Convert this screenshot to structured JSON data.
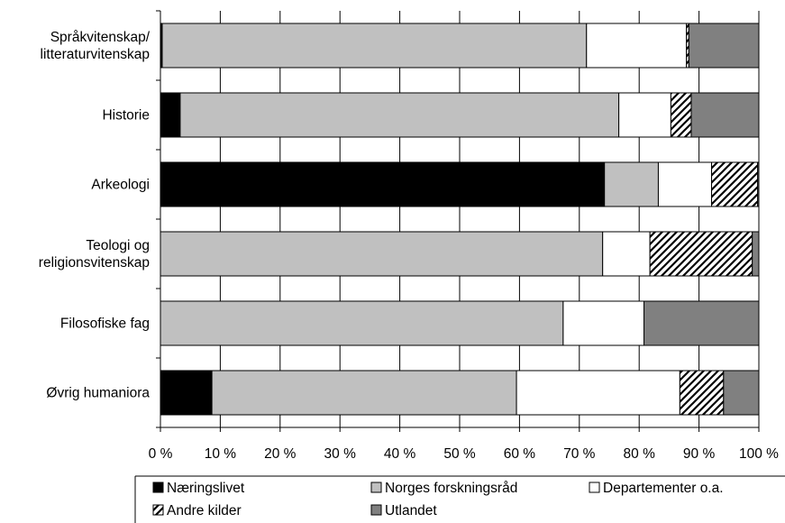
{
  "chart_data": {
    "type": "bar",
    "orientation": "horizontal",
    "stacked": true,
    "percent": true,
    "categories": [
      [
        "Språkvitenskap/",
        "litteraturvitenskap"
      ],
      [
        "Historie"
      ],
      [
        "Arkeologi"
      ],
      [
        "Teologi og",
        "religionsvitenskap"
      ],
      [
        "Filosofiske fag"
      ],
      [
        "Øvrig humaniora"
      ]
    ],
    "series": [
      {
        "name": "Næringslivet",
        "color": "#000000",
        "pattern": "solid",
        "values": [
          0.3,
          3.3,
          74.2,
          0,
          0,
          8.6
        ]
      },
      {
        "name": "Norges forskningsråd",
        "color": "#c0c0c0",
        "pattern": "solid",
        "values": [
          70.9,
          73.3,
          9.0,
          73.9,
          67.3,
          50.9
        ]
      },
      {
        "name": "Departementer o.a.",
        "color": "#ffffff",
        "pattern": "solid",
        "values": [
          16.7,
          8.7,
          8.9,
          7.9,
          13.5,
          27.3
        ]
      },
      {
        "name": "Andre kilder",
        "color": "#ffffff",
        "pattern": "diagonal-hatch",
        "values": [
          0.4,
          3.4,
          7.7,
          17.1,
          0,
          7.3
        ]
      },
      {
        "name": "Utlandet",
        "color": "#808080",
        "pattern": "solid",
        "values": [
          11.7,
          11.3,
          0.2,
          1.1,
          19.2,
          5.9
        ]
      }
    ],
    "xlim": [
      0,
      100
    ],
    "xticks": [
      "0 %",
      "10 %",
      "20 %",
      "30 %",
      "40 %",
      "50 %",
      "60 %",
      "70 %",
      "80 %",
      "90 %",
      "100 %"
    ],
    "grid": true,
    "legend_position": "bottom",
    "title": "",
    "xlabel": "",
    "ylabel": ""
  }
}
